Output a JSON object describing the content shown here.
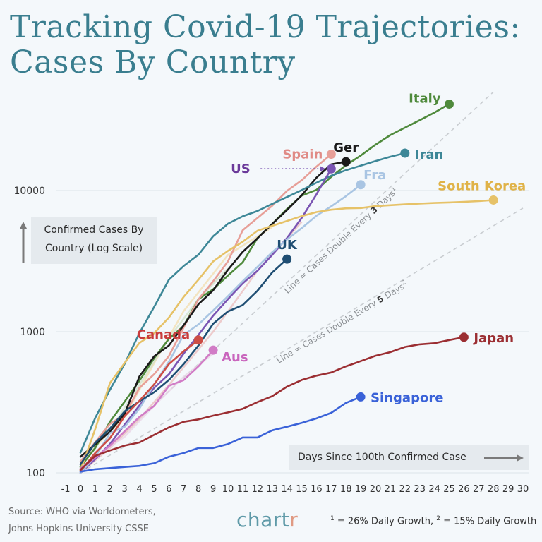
{
  "header": {
    "title_line1": "Tracking Covid-19 Trajectories:",
    "title_line2": "Cases By Country"
  },
  "ylabel": {
    "line1": "Confirmed Cases By",
    "line2": "Country (Log Scale)"
  },
  "xlabel": "Days Since 100th Confirmed Case",
  "footer": {
    "source_line1": "Source: WHO via Worldometers,",
    "source_line2": "Johns Hopkins University CSSE",
    "brand_main": "chart",
    "brand_accent": "r",
    "fn_sup1": "1",
    "fn_text1": " = 26% Daily Growth, ",
    "fn_sup2": "2",
    "fn_text2": " = 15% Daily Growth"
  },
  "chart_data": {
    "type": "line",
    "title": "Tracking Covid-19 Trajectories: Cases By Country",
    "xlabel": "Days Since 100th Confirmed Case",
    "ylabel": "Confirmed Cases By Country (Log Scale)",
    "y_scale": "log",
    "xlim": [
      -1,
      30
    ],
    "ylim": [
      100,
      60000
    ],
    "x_ticks": [
      "-1",
      "0",
      "1",
      "2",
      "3",
      "4",
      "5",
      "6",
      "7",
      "8",
      "9",
      "10",
      "11",
      "12",
      "13",
      "14",
      "15",
      "16",
      "17",
      "18",
      "19",
      "20",
      "21",
      "22",
      "23",
      "24",
      "25",
      "26",
      "27",
      "28",
      "29",
      "30"
    ],
    "y_ticks": [
      {
        "value": 100,
        "label": "100"
      },
      {
        "value": 1000,
        "label": "1000"
      },
      {
        "value": 10000,
        "label": "10000"
      }
    ],
    "grid": true,
    "reference_lines": [
      {
        "label_pre": "Line = Cases Double Every ",
        "label_num": "3",
        "label_post": " Days",
        "sup": "1",
        "x0": 0,
        "y0": 100,
        "x1": 28,
        "y1": 50000
      },
      {
        "label_pre": "Line = Cases Double Every ",
        "label_num": "5",
        "label_post": " Days",
        "sup": "2",
        "x0": 0,
        "y0": 100,
        "x1": 30,
        "y1": 7500
      }
    ],
    "faded_lines": [
      {
        "color": "#e9b8b8",
        "points": [
          [
            0,
            100
          ],
          [
            2,
            150
          ],
          [
            4,
            240
          ],
          [
            6,
            420
          ],
          [
            9,
            1000
          ],
          [
            12,
            2700
          ],
          [
            15,
            6000
          ]
        ]
      },
      {
        "color": "#f2dca8",
        "points": [
          [
            0,
            120
          ],
          [
            3,
            250
          ],
          [
            5,
            600
          ],
          [
            7,
            1400
          ],
          [
            10,
            3500
          ],
          [
            13,
            5500
          ]
        ]
      },
      {
        "color": "#cfe0c5",
        "points": [
          [
            0,
            120
          ],
          [
            2,
            200
          ],
          [
            4,
            420
          ],
          [
            6,
            900
          ],
          [
            8,
            1700
          ],
          [
            10,
            2800
          ]
        ]
      },
      {
        "color": "#e8d2e4",
        "points": [
          [
            0,
            110
          ],
          [
            3,
            180
          ],
          [
            5,
            300
          ],
          [
            7,
            480
          ],
          [
            9,
            700
          ]
        ]
      }
    ],
    "series": [
      {
        "name": "Italy",
        "color": "#4f8a3c",
        "label_color": "#4f8a3c",
        "points": [
          [
            0,
            110
          ],
          [
            1,
            150
          ],
          [
            2,
            230
          ],
          [
            3,
            320
          ],
          [
            4,
            450
          ],
          [
            5,
            650
          ],
          [
            6,
            890
          ],
          [
            7,
            1100
          ],
          [
            8,
            1700
          ],
          [
            9,
            2000
          ],
          [
            10,
            2500
          ],
          [
            11,
            3100
          ],
          [
            12,
            4600
          ],
          [
            13,
            5800
          ],
          [
            14,
            7400
          ],
          [
            15,
            9200
          ],
          [
            16,
            10100
          ],
          [
            17,
            12500
          ],
          [
            18,
            15100
          ],
          [
            19,
            17700
          ],
          [
            20,
            21100
          ],
          [
            21,
            24700
          ],
          [
            22,
            27900
          ],
          [
            23,
            31500
          ],
          [
            24,
            35700
          ],
          [
            25,
            41000
          ]
        ]
      },
      {
        "name": "Spain",
        "color": "#e79f98",
        "label_color": "#e08b86",
        "points": [
          [
            0,
            120
          ],
          [
            1,
            165
          ],
          [
            2,
            222
          ],
          [
            3,
            259
          ],
          [
            4,
            400
          ],
          [
            5,
            500
          ],
          [
            6,
            673
          ],
          [
            7,
            1073
          ],
          [
            8,
            1695
          ],
          [
            9,
            2277
          ],
          [
            10,
            3146
          ],
          [
            11,
            5232
          ],
          [
            12,
            6391
          ],
          [
            13,
            7798
          ],
          [
            14,
            9942
          ],
          [
            15,
            11826
          ],
          [
            16,
            14769
          ],
          [
            17,
            18077
          ]
        ]
      },
      {
        "name": "Ger",
        "color": "#1a1a1a",
        "label_color": "#1a1a1a",
        "points": [
          [
            0,
            130
          ],
          [
            1,
            159
          ],
          [
            2,
            196
          ],
          [
            3,
            262
          ],
          [
            4,
            482
          ],
          [
            5,
            670
          ],
          [
            6,
            799
          ],
          [
            7,
            1112
          ],
          [
            8,
            1565
          ],
          [
            9,
            1966
          ],
          [
            10,
            2745
          ],
          [
            11,
            3675
          ],
          [
            12,
            4585
          ],
          [
            13,
            5795
          ],
          [
            14,
            7272
          ],
          [
            15,
            9257
          ],
          [
            16,
            12327
          ],
          [
            17,
            15320
          ],
          [
            18,
            16000
          ]
        ]
      },
      {
        "name": "Iran",
        "color": "#3d8797",
        "label_color": "#3d8797",
        "points": [
          [
            0,
            139
          ],
          [
            1,
            245
          ],
          [
            2,
            388
          ],
          [
            3,
            593
          ],
          [
            4,
            978
          ],
          [
            5,
            1501
          ],
          [
            6,
            2336
          ],
          [
            7,
            2922
          ],
          [
            8,
            3513
          ],
          [
            9,
            4747
          ],
          [
            10,
            5823
          ],
          [
            11,
            6566
          ],
          [
            12,
            7161
          ],
          [
            13,
            8042
          ],
          [
            14,
            9000
          ],
          [
            15,
            10075
          ],
          [
            16,
            11364
          ],
          [
            17,
            12729
          ],
          [
            18,
            13938
          ],
          [
            19,
            14991
          ],
          [
            20,
            16169
          ],
          [
            21,
            17361
          ],
          [
            22,
            18407
          ]
        ]
      },
      {
        "name": "US",
        "color": "#7a55b3",
        "label_color": "#6b3a9a",
        "points": [
          [
            0,
            100
          ],
          [
            1,
            125
          ],
          [
            2,
            160
          ],
          [
            3,
            220
          ],
          [
            4,
            300
          ],
          [
            5,
            400
          ],
          [
            6,
            500
          ],
          [
            7,
            700
          ],
          [
            8,
            950
          ],
          [
            9,
            1300
          ],
          [
            10,
            1700
          ],
          [
            11,
            2200
          ],
          [
            12,
            2700
          ],
          [
            13,
            3500
          ],
          [
            14,
            4600
          ],
          [
            15,
            6400
          ],
          [
            16,
            9400
          ],
          [
            17,
            14250
          ]
        ]
      },
      {
        "name": "Fra",
        "color": "#a9c5e3",
        "label_color": "#a9c5e3",
        "points": [
          [
            0,
            100
          ],
          [
            1,
            130
          ],
          [
            2,
            191
          ],
          [
            3,
            212
          ],
          [
            4,
            285
          ],
          [
            5,
            423
          ],
          [
            6,
            613
          ],
          [
            7,
            949
          ],
          [
            8,
            1126
          ],
          [
            9,
            1412
          ],
          [
            10,
            1784
          ],
          [
            11,
            2281
          ],
          [
            12,
            2876
          ],
          [
            13,
            3661
          ],
          [
            14,
            4499
          ],
          [
            15,
            5423
          ],
          [
            16,
            6633
          ],
          [
            17,
            7730
          ],
          [
            18,
            9134
          ],
          [
            19,
            10995
          ]
        ]
      },
      {
        "name": "South Korea",
        "color": "#e6c268",
        "label_color": "#e0b348",
        "points": [
          [
            0,
            104
          ],
          [
            1,
            204
          ],
          [
            2,
            433
          ],
          [
            3,
            602
          ],
          [
            4,
            833
          ],
          [
            5,
            977
          ],
          [
            6,
            1261
          ],
          [
            7,
            1766
          ],
          [
            8,
            2337
          ],
          [
            9,
            3150
          ],
          [
            10,
            3736
          ],
          [
            11,
            4335
          ],
          [
            12,
            5186
          ],
          [
            13,
            5621
          ],
          [
            14,
            6088
          ],
          [
            15,
            6593
          ],
          [
            16,
            7041
          ],
          [
            17,
            7314
          ],
          [
            18,
            7478
          ],
          [
            19,
            7513
          ],
          [
            20,
            7755
          ],
          [
            21,
            7869
          ],
          [
            22,
            7979
          ],
          [
            23,
            8086
          ],
          [
            24,
            8162
          ],
          [
            25,
            8236
          ],
          [
            26,
            8320
          ],
          [
            27,
            8413
          ],
          [
            28,
            8565
          ]
        ]
      },
      {
        "name": "UK",
        "color": "#1f4e73",
        "label_color": "#1f4e73",
        "points": [
          [
            0,
            115
          ],
          [
            1,
            163
          ],
          [
            2,
            206
          ],
          [
            3,
            273
          ],
          [
            4,
            321
          ],
          [
            5,
            373
          ],
          [
            6,
            456
          ],
          [
            7,
            590
          ],
          [
            8,
            798
          ],
          [
            9,
            1140
          ],
          [
            10,
            1391
          ],
          [
            11,
            1543
          ],
          [
            12,
            1950
          ],
          [
            13,
            2626
          ],
          [
            14,
            3269
          ]
        ]
      },
      {
        "name": "Canada",
        "color": "#cc4d45",
        "label_color": "#c93c3c",
        "points": [
          [
            0,
            103
          ],
          [
            1,
            138
          ],
          [
            2,
            176
          ],
          [
            3,
            252
          ],
          [
            4,
            324
          ],
          [
            5,
            424
          ],
          [
            6,
            590
          ],
          [
            7,
            727
          ],
          [
            8,
            873
          ]
        ]
      },
      {
        "name": "Aus",
        "color": "#d17cc6",
        "label_color": "#c965bd",
        "points": [
          [
            0,
            107
          ],
          [
            1,
            128
          ],
          [
            2,
            156
          ],
          [
            3,
            197
          ],
          [
            4,
            249
          ],
          [
            5,
            298
          ],
          [
            6,
            414
          ],
          [
            7,
            454
          ],
          [
            8,
            568
          ],
          [
            9,
            740
          ]
        ]
      },
      {
        "name": "Japan",
        "color": "#9b2e32",
        "label_color": "#9b2e32",
        "points": [
          [
            0,
            105
          ],
          [
            1,
            132
          ],
          [
            2,
            144
          ],
          [
            3,
            156
          ],
          [
            4,
            164
          ],
          [
            5,
            186
          ],
          [
            6,
            210
          ],
          [
            7,
            230
          ],
          [
            8,
            239
          ],
          [
            9,
            254
          ],
          [
            10,
            268
          ],
          [
            11,
            284
          ],
          [
            12,
            317
          ],
          [
            13,
            349
          ],
          [
            14,
            408
          ],
          [
            15,
            455
          ],
          [
            16,
            488
          ],
          [
            17,
            514
          ],
          [
            18,
            568
          ],
          [
            19,
            619
          ],
          [
            20,
            675
          ],
          [
            21,
            716
          ],
          [
            22,
            780
          ],
          [
            23,
            814
          ],
          [
            24,
            829
          ],
          [
            25,
            873
          ],
          [
            26,
            914
          ]
        ]
      },
      {
        "name": "Singapore",
        "color": "#3a62d8",
        "label_color": "#3a62d8",
        "points": [
          [
            0,
            102
          ],
          [
            1,
            106
          ],
          [
            2,
            108
          ],
          [
            3,
            110
          ],
          [
            4,
            112
          ],
          [
            5,
            117
          ],
          [
            6,
            130
          ],
          [
            7,
            138
          ],
          [
            8,
            150
          ],
          [
            9,
            150
          ],
          [
            10,
            160
          ],
          [
            11,
            178
          ],
          [
            12,
            178
          ],
          [
            13,
            200
          ],
          [
            14,
            212
          ],
          [
            15,
            226
          ],
          [
            16,
            243
          ],
          [
            17,
            266
          ],
          [
            18,
            313
          ],
          [
            19,
            345
          ]
        ]
      }
    ]
  }
}
